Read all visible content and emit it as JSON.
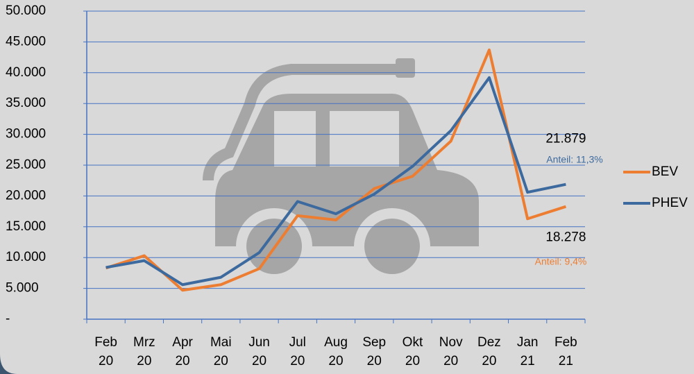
{
  "chart_data": {
    "type": "line",
    "categories": [
      "Feb 20",
      "Mrz 20",
      "Apr 20",
      "Mai 20",
      "Jun 20",
      "Jul 20",
      "Aug 20",
      "Sep 20",
      "Okt 20",
      "Nov 20",
      "Dez 20",
      "Jan 21",
      "Feb 21"
    ],
    "series": [
      {
        "name": "BEV",
        "color": "#ed7d31",
        "values": [
          8300,
          10300,
          4700,
          5600,
          8200,
          16800,
          16100,
          21200,
          23200,
          28900,
          43700,
          16300,
          18278
        ],
        "value_labels": [
          null,
          null,
          null,
          null,
          null,
          null,
          null,
          null,
          null,
          null,
          null,
          null,
          "18.278"
        ]
      },
      {
        "name": "PHEV",
        "color": "#3d6a9e",
        "values": [
          8400,
          9500,
          5600,
          6800,
          10800,
          19100,
          17100,
          20300,
          24800,
          30600,
          39200,
          20600,
          21879
        ],
        "value_labels": [
          null,
          null,
          null,
          null,
          null,
          null,
          null,
          null,
          null,
          null,
          null,
          null,
          "21.879"
        ]
      }
    ],
    "annotations": [
      {
        "text": "Anteil: 9,4%",
        "color": "#ed7d31"
      },
      {
        "text": "Anteil: 11,3%",
        "color": "#3d6a9e"
      }
    ],
    "ylim": [
      0,
      50000
    ],
    "yticks": [
      {
        "value": 0,
        "label": "-"
      },
      {
        "value": 5000,
        "label": "5.000"
      },
      {
        "value": 10000,
        "label": "10.000"
      },
      {
        "value": 15000,
        "label": "15.000"
      },
      {
        "value": 20000,
        "label": "20.000"
      },
      {
        "value": 25000,
        "label": "25.000"
      },
      {
        "value": 30000,
        "label": "30.000"
      },
      {
        "value": 35000,
        "label": "35.000"
      },
      {
        "value": 40000,
        "label": "40.000"
      },
      {
        "value": 45000,
        "label": "45.000"
      },
      {
        "value": 50000,
        "label": "50.000"
      }
    ],
    "grid": true,
    "grid_color": "#4472c4",
    "legend": "right"
  }
}
